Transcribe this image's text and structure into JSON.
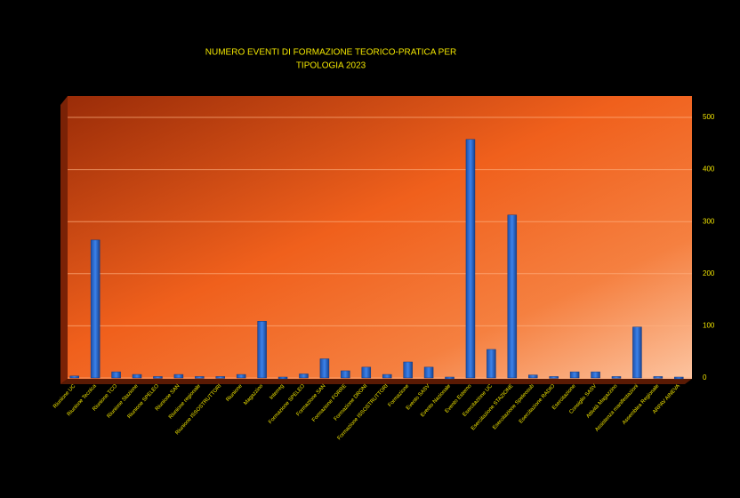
{
  "chart_data": {
    "type": "bar",
    "title": [
      "NUMERO EVENTI  DI FORMAZIONE TEORICO-PRATICA PER",
      "TIPOLOGIA  2023"
    ],
    "categories": [
      "Riunione UC",
      "Riunione Tecnica",
      "Riunione TCO",
      "Riunione Stazione",
      "Riunione SPELEO",
      "Riunione SAN",
      "Riunione regionale",
      "Riunione ISSOSTRUTTORI",
      "Riunione",
      "Magazzino",
      "Interreg",
      "Formazione SPELEO",
      "Formazione SAN",
      "Formazione FORRE",
      "Formazione DRONI",
      "Formazione ISSOSTRUTTORI",
      "Formazione",
      "Evento SASV",
      "Evento Nazionale",
      "Evento Esterno",
      "Esercitazione UC",
      "Esercitazione STAZIONE",
      "Esercitazione Speleosub",
      "Esercitazione RADIO",
      "Esercitazione",
      "Consiglio SASV",
      "Attività Magazzino",
      "Assistenza manifestazioni",
      "Assemblea Regionale",
      "ARPAV AINEVA"
    ],
    "values": [
      2,
      263,
      10,
      5,
      1,
      5,
      1,
      1,
      5,
      107,
      0,
      6,
      35,
      12,
      19,
      5,
      29,
      19,
      0,
      456,
      53,
      311,
      4,
      1,
      10,
      10,
      1,
      96,
      1,
      0
    ],
    "color": "#2f6fd6",
    "ylim": [
      0,
      500
    ],
    "yticks": [
      0,
      100,
      200,
      300,
      400,
      500
    ],
    "grid": true
  }
}
